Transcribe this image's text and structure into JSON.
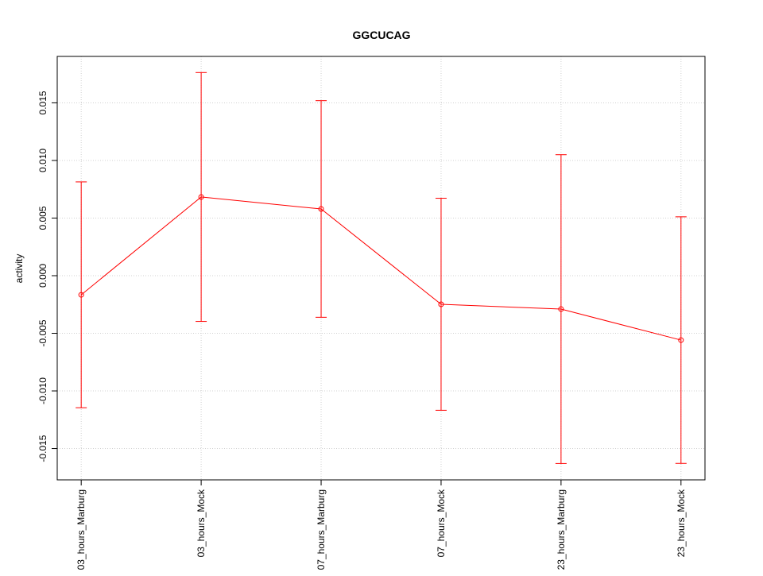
{
  "chart_data": {
    "type": "line",
    "title": "GGCUCAG",
    "y_label": "activity",
    "categories": [
      "03_hours_Marburg",
      "03_hours_Mock",
      "07_hours_Marburg",
      "07_hours_Mock",
      "23_hours_Marburg",
      "23_hours_Mock"
    ],
    "series": [
      {
        "color": "#ff0000",
        "values": [
          -0.00166,
          0.00683,
          0.00579,
          -0.00248,
          -0.0029,
          -0.00559
        ],
        "errors": [
          0.0098,
          0.0108,
          0.0094,
          0.0092,
          0.0134,
          0.0107
        ]
      }
    ],
    "ylim": [
      -0.01772,
      0.01903
    ],
    "yticks": [
      -0.015,
      {
        "value": -0.01,
        "label": "-0.010"
      },
      -0.005,
      {
        "value": 0,
        "label": "0.000"
      },
      0.005,
      {
        "value": 0.01,
        "label": "0.010"
      },
      0.015
    ],
    "grid": true
  }
}
